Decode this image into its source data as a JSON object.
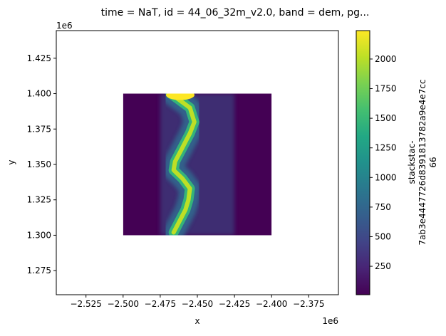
{
  "chart_data": {
    "type": "heatmap",
    "title": "time = NaT, id = 44_06_32m_v2.0, band = dem, pg...",
    "xlabel": "x",
    "ylabel": "y",
    "x_offset_label": "1e6",
    "y_offset_label": "1e6",
    "xlim": [
      -2.545,
      -2.355
    ],
    "ylim": [
      1.258,
      1.4445
    ],
    "xticks": [
      {
        "value": -2.525,
        "label": "−2.525"
      },
      {
        "value": -2.5,
        "label": "−2.500"
      },
      {
        "value": -2.475,
        "label": "−2.475"
      },
      {
        "value": -2.45,
        "label": "−2.450"
      },
      {
        "value": -2.425,
        "label": "−2.425"
      },
      {
        "value": -2.4,
        "label": "−2.400"
      },
      {
        "value": -2.375,
        "label": "−2.375"
      }
    ],
    "yticks": [
      {
        "value": 1.275,
        "label": "1.275"
      },
      {
        "value": 1.3,
        "label": "1.300"
      },
      {
        "value": 1.325,
        "label": "1.325"
      },
      {
        "value": 1.35,
        "label": "1.350"
      },
      {
        "value": 1.375,
        "label": "1.375"
      },
      {
        "value": 1.4,
        "label": "1.400"
      },
      {
        "value": 1.425,
        "label": "1.425"
      }
    ],
    "raster_extent": {
      "x": [
        -2.5,
        -2.4
      ],
      "y": [
        1.3,
        1.4
      ]
    },
    "colorbar": {
      "label_lines": [
        "stackstac-",
        "7ab3e4447726d8391813782a9e4e7cc",
        "66"
      ],
      "range": [
        10,
        2240
      ],
      "colormap": "viridis",
      "ticks": [
        {
          "value": 250,
          "label": "250"
        },
        {
          "value": 500,
          "label": "500"
        },
        {
          "value": 750,
          "label": "750"
        },
        {
          "value": 1000,
          "label": "1000"
        },
        {
          "value": 1250,
          "label": "1250"
        },
        {
          "value": 1500,
          "label": "1500"
        },
        {
          "value": 1750,
          "label": "1750"
        },
        {
          "value": 2000,
          "label": "2000"
        }
      ]
    },
    "ridge_path": [
      {
        "x": -2.468,
        "y": 1.4
      },
      {
        "x": -2.455,
        "y": 1.39
      },
      {
        "x": -2.452,
        "y": 1.38
      },
      {
        "x": -2.455,
        "y": 1.372
      },
      {
        "x": -2.458,
        "y": 1.366
      },
      {
        "x": -2.461,
        "y": 1.36
      },
      {
        "x": -2.465,
        "y": 1.352
      },
      {
        "x": -2.466,
        "y": 1.346
      },
      {
        "x": -2.46,
        "y": 1.34
      },
      {
        "x": -2.455,
        "y": 1.333
      },
      {
        "x": -2.456,
        "y": 1.325
      },
      {
        "x": -2.458,
        "y": 1.318
      },
      {
        "x": -2.462,
        "y": 1.31
      },
      {
        "x": -2.466,
        "y": 1.302
      }
    ]
  }
}
